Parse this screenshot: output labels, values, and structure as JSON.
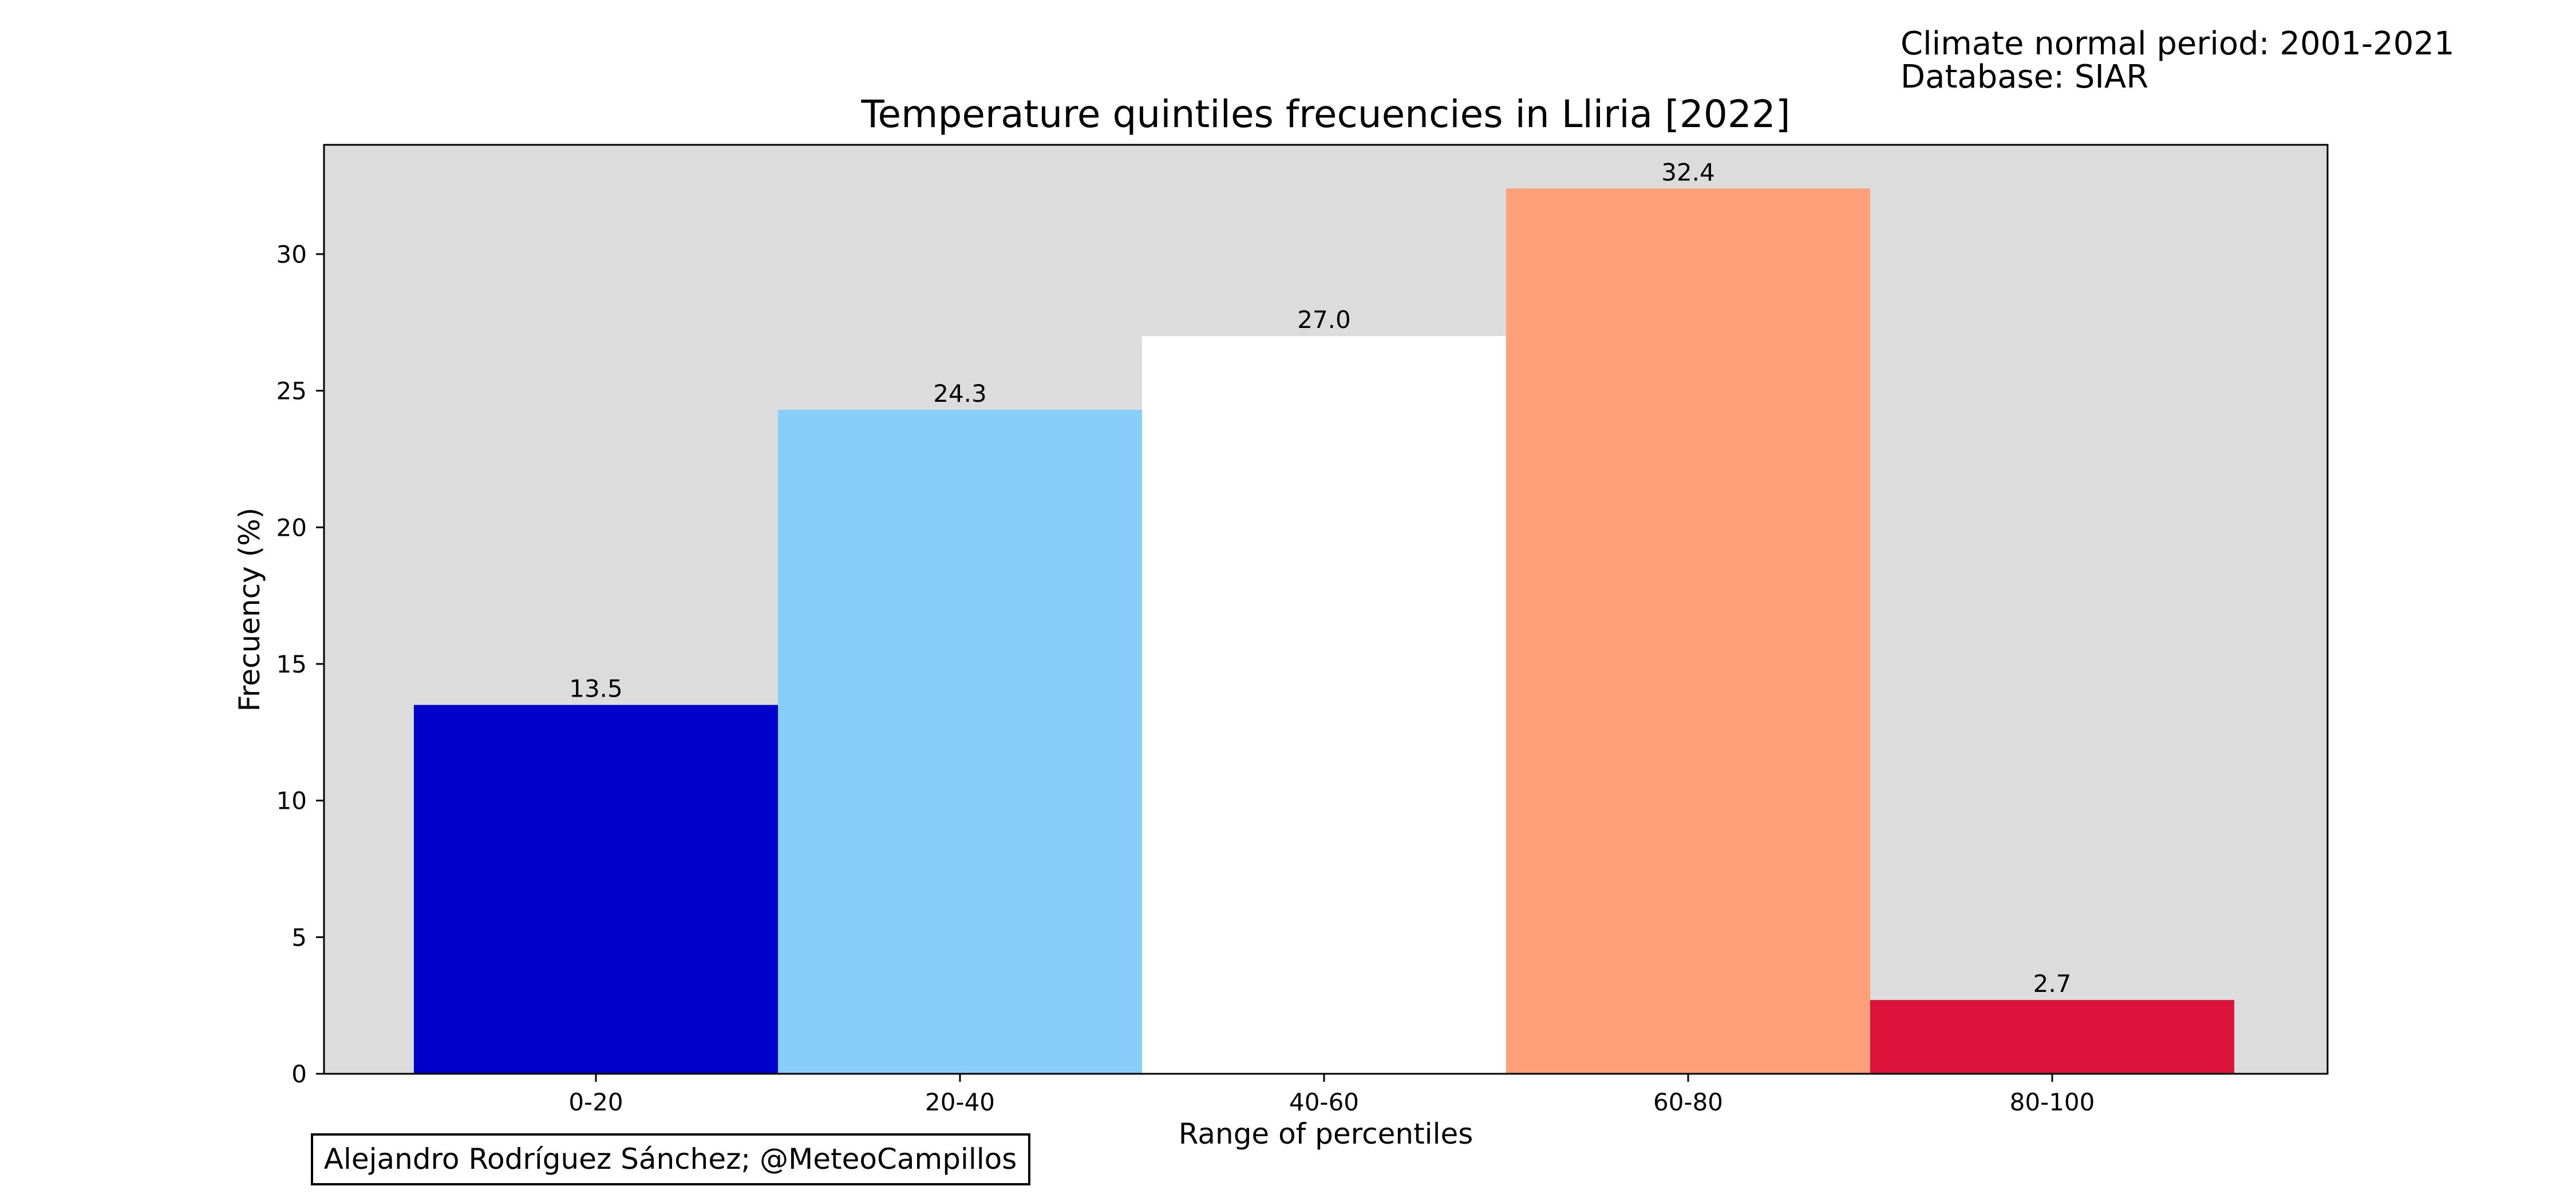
{
  "chart_data": {
    "type": "bar",
    "title": "Temperature quintiles frecuencies in Lliria [2022]",
    "xlabel": "Range of percentiles",
    "ylabel": "Frecuency (%)",
    "categories": [
      "0-20",
      "20-40",
      "40-60",
      "60-80",
      "80-100"
    ],
    "values": [
      13.5,
      24.3,
      27.0,
      32.4,
      2.7
    ],
    "value_labels": [
      "13.5",
      "24.3",
      "27.0",
      "32.4",
      "2.7"
    ],
    "colors": [
      "#0000cd",
      "#87cefa",
      "#ffffff",
      "#ffa07a",
      "#dc143c"
    ],
    "ylim": [
      0,
      34
    ],
    "yticks": [
      0,
      5,
      10,
      15,
      20,
      25,
      30
    ],
    "grid": false,
    "plot_background": "#dcdcdc",
    "info_lines": [
      "Climate normal period: 2001-2021",
      "Database: SIAR"
    ],
    "credit": "Alejandro Rodríguez Sánchez; @MeteoCampillos"
  }
}
